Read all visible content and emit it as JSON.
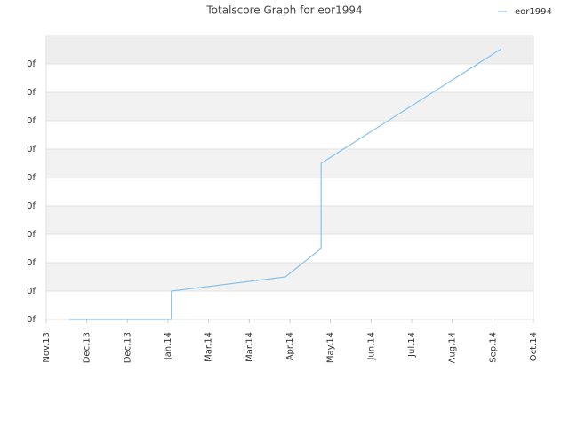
{
  "chart_data": {
    "type": "line",
    "title": "Totalscore Graph for eor1994",
    "x": [
      0.57,
      3.08,
      3.08,
      5.89,
      6.77,
      6.77,
      11.21
    ],
    "series": [
      {
        "name": "eor1994",
        "color": "#88c2f0",
        "values": [
          0,
          0,
          1,
          1.5,
          2.5,
          5.5,
          9.53
        ]
      }
    ],
    "xlim": [
      0,
      12
    ],
    "xticks": [
      {
        "value": 0,
        "label": "Nov.13"
      },
      {
        "value": 1,
        "label": "Dec.13"
      },
      {
        "value": 2,
        "label": "Dec.13"
      },
      {
        "value": 3,
        "label": "Jan.14"
      },
      {
        "value": 4,
        "label": "Mar.14"
      },
      {
        "value": 5,
        "label": "Mar.14"
      },
      {
        "value": 6,
        "label": "Apr.14"
      },
      {
        "value": 7,
        "label": "May.14"
      },
      {
        "value": 8,
        "label": "Jun.14"
      },
      {
        "value": 9,
        "label": "Jul.14"
      },
      {
        "value": 10,
        "label": "Aug.14"
      },
      {
        "value": 11,
        "label": "Sep.14"
      },
      {
        "value": 12,
        "label": "Oct.14"
      }
    ],
    "ylim": [
      0,
      10
    ],
    "yticks": [
      {
        "value": 0,
        "label": "0f"
      },
      {
        "value": 1,
        "label": "0f"
      },
      {
        "value": 2,
        "label": "0f"
      },
      {
        "value": 3,
        "label": "0f"
      },
      {
        "value": 4,
        "label": "0f"
      },
      {
        "value": 5,
        "label": "0f"
      },
      {
        "value": 6,
        "label": "0f"
      },
      {
        "value": 7,
        "label": "0f"
      },
      {
        "value": 8,
        "label": "0f"
      },
      {
        "value": 9,
        "label": "0f"
      }
    ],
    "grid": true,
    "legend": "top-right"
  }
}
